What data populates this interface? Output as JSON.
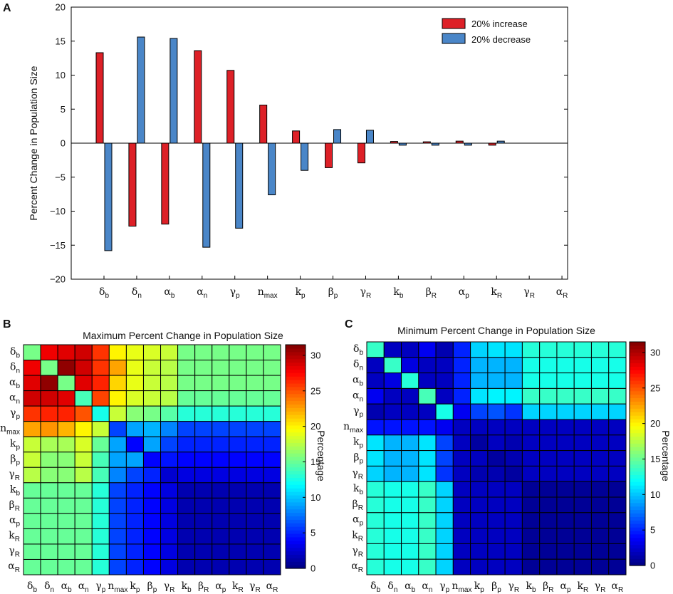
{
  "colors": {
    "increase": "#dd2027",
    "decrease": "#4a86c8"
  },
  "param_symbols": {
    "delta_b": [
      "δ",
      "b"
    ],
    "delta_n": [
      "δ",
      "n"
    ],
    "alpha_b": [
      "α",
      "b"
    ],
    "alpha_n": [
      "α",
      "n"
    ],
    "gamma_p": [
      "γ",
      "p"
    ],
    "n_max": [
      "n",
      "max"
    ],
    "k_p": [
      "k",
      "p"
    ],
    "beta_p": [
      "β",
      "p"
    ],
    "gamma_R": [
      "γ",
      "R"
    ],
    "k_b": [
      "k",
      "b"
    ],
    "beta_R": [
      "β",
      "R"
    ],
    "alpha_p": [
      "α",
      "p"
    ],
    "k_R": [
      "k",
      "R"
    ],
    "alpha_R": [
      "α",
      "R"
    ]
  },
  "chart_data": [
    {
      "panel": "A",
      "type": "bar",
      "ylabel": "Percent Change in Population Size",
      "xlabel": "",
      "ylim": [
        -20,
        20
      ],
      "yticks": [
        -20,
        -15,
        -10,
        -5,
        0,
        5,
        10,
        15,
        20
      ],
      "yticklabels": [
        "−20",
        "−15",
        "−10",
        "−5",
        "0",
        "5",
        "10",
        "15",
        "20"
      ],
      "categories": [
        "delta_b",
        "delta_n",
        "alpha_b",
        "alpha_n",
        "gamma_p",
        "n_max",
        "k_p",
        "beta_p",
        "gamma_R",
        "k_b",
        "beta_R",
        "alpha_p",
        "k_R",
        "gamma_R",
        "alpha_R"
      ],
      "series": [
        {
          "name": "20% increase",
          "color_key": "increase",
          "values": [
            13.3,
            -12.2,
            -11.9,
            13.6,
            10.7,
            5.6,
            1.8,
            -3.6,
            -2.9,
            0.25,
            0.2,
            0.3,
            -0.3,
            0,
            0
          ]
        },
        {
          "name": "20% decrease",
          "color_key": "decrease",
          "values": [
            -15.8,
            15.6,
            15.4,
            -15.3,
            -12.5,
            -7.6,
            -4.0,
            2.0,
            1.9,
            -0.3,
            -0.3,
            -0.3,
            0.3,
            0,
            0
          ]
        }
      ]
    },
    {
      "panel": "B",
      "type": "heatmap",
      "title": "Maximum Percent Change in Population Size",
      "colorbar_label": "Percentage",
      "colorbar_range": [
        0,
        31.5
      ],
      "colorbar_ticks": [
        0,
        5,
        10,
        15,
        20,
        25,
        30
      ],
      "rows": [
        "delta_b",
        "delta_n",
        "alpha_b",
        "alpha_n",
        "gamma_p",
        "n_max",
        "k_p",
        "beta_p",
        "gamma_R",
        "k_b",
        "beta_R",
        "alpha_p",
        "k_R",
        "gamma_R",
        "alpha_R"
      ],
      "cols": [
        "delta_b",
        "delta_n",
        "alpha_b",
        "alpha_n",
        "gamma_p",
        "n_max",
        "k_p",
        "beta_p",
        "gamma_R",
        "k_b",
        "beta_R",
        "alpha_p",
        "k_R",
        "gamma_R",
        "alpha_R"
      ],
      "values": [
        [
          15.5,
          28,
          28.5,
          29,
          26,
          20,
          19,
          18.5,
          18,
          15.5,
          15.5,
          15.5,
          15.5,
          15.5,
          15.5
        ],
        [
          28,
          15.5,
          31,
          29,
          26,
          22.5,
          19,
          18,
          17.5,
          15.5,
          15.5,
          15.5,
          15.5,
          15.5,
          15.5
        ],
        [
          28.5,
          31,
          15.5,
          28.5,
          26.5,
          21,
          19,
          18,
          17.5,
          15.5,
          15.5,
          15.5,
          15.5,
          15.5,
          15.5
        ],
        [
          29,
          29,
          28.5,
          14,
          25.5,
          20,
          18.5,
          18,
          17.5,
          15,
          15,
          15,
          15,
          15,
          15
        ],
        [
          26,
          26.5,
          26.5,
          25,
          12.5,
          18,
          16,
          15.5,
          14.5,
          13,
          13,
          13,
          13,
          13,
          13
        ],
        [
          22.5,
          23,
          22,
          20,
          18,
          6,
          9,
          9.5,
          8,
          6,
          6,
          6,
          6,
          6,
          6
        ],
        [
          18,
          17,
          17,
          18.5,
          15,
          9,
          4,
          9,
          6,
          5,
          5,
          5,
          5,
          5,
          5
        ],
        [
          18,
          16,
          16,
          18,
          14,
          9,
          9,
          4,
          4.5,
          4,
          4,
          4,
          4,
          4,
          4
        ],
        [
          17.5,
          16,
          16,
          17.5,
          14,
          8,
          6,
          5,
          2.5,
          3,
          3,
          3,
          3,
          3,
          3
        ],
        [
          15,
          15,
          15,
          15,
          13,
          6,
          5,
          4,
          3,
          1.5,
          1.5,
          1.5,
          1.5,
          1.5,
          1.5
        ],
        [
          15,
          15,
          15,
          15,
          13,
          6,
          5,
          4,
          3,
          1.5,
          1.5,
          1.5,
          1.5,
          1.5,
          1.5
        ],
        [
          15,
          15,
          15,
          15,
          13,
          6,
          5,
          4,
          3,
          1.5,
          1.5,
          1.5,
          1.5,
          1.5,
          1.5
        ],
        [
          15,
          15,
          15,
          15,
          13,
          6,
          5,
          4,
          3,
          1.5,
          1.5,
          1.5,
          1.5,
          1.5,
          1.5
        ],
        [
          15,
          15,
          15,
          15,
          13,
          6,
          5,
          4,
          3,
          1.5,
          1.5,
          1.5,
          1.5,
          1.5,
          1.5
        ],
        [
          15,
          15,
          15,
          15,
          13,
          6,
          5,
          4,
          3,
          1.5,
          1.5,
          1.5,
          1.5,
          1.5,
          1.5
        ]
      ]
    },
    {
      "panel": "C",
      "type": "heatmap",
      "title": "Minimum Percent Change in Population Size",
      "colorbar_label": "Percentage",
      "colorbar_range": [
        0,
        31.5
      ],
      "colorbar_ticks": [
        0,
        5,
        10,
        15,
        20,
        25,
        30
      ],
      "rows": [
        "delta_b",
        "delta_n",
        "alpha_b",
        "alpha_n",
        "gamma_p",
        "n_max",
        "k_p",
        "beta_p",
        "gamma_R",
        "k_b",
        "beta_R",
        "alpha_p",
        "k_R",
        "gamma_R",
        "alpha_R"
      ],
      "cols": [
        "delta_b",
        "delta_n",
        "alpha_b",
        "alpha_n",
        "gamma_p",
        "n_max",
        "k_p",
        "beta_p",
        "gamma_R",
        "k_b",
        "beta_R",
        "alpha_p",
        "k_R",
        "gamma_R",
        "alpha_R"
      ],
      "values": [
        [
          13.5,
          2,
          2,
          3.5,
          1.5,
          5,
          10.5,
          11,
          11,
          13,
          13,
          13,
          13,
          13,
          13
        ],
        [
          2,
          13.5,
          3,
          2,
          2,
          5,
          9.5,
          9.5,
          9.5,
          12.5,
          12.5,
          12.5,
          12.5,
          12.5,
          12.5
        ],
        [
          2,
          3,
          13,
          2,
          2,
          5,
          9.5,
          9.5,
          9.5,
          12.5,
          12.5,
          12.5,
          12.5,
          12.5,
          12.5
        ],
        [
          3.5,
          2,
          2,
          14,
          2,
          5,
          11,
          11.5,
          11.5,
          13.5,
          13.5,
          13.5,
          13.5,
          13.5,
          13.5
        ],
        [
          1.5,
          2,
          2,
          2,
          12.5,
          3.5,
          6,
          6.5,
          5.5,
          10.5,
          10.5,
          10.5,
          10.5,
          10.5,
          10.5
        ],
        [
          4.5,
          4.5,
          4.5,
          4.5,
          3.5,
          2,
          2,
          2,
          2,
          2,
          2,
          2,
          2,
          2,
          2
        ],
        [
          11,
          9.5,
          9.5,
          11,
          6,
          2,
          1,
          2,
          1.5,
          2,
          2,
          2,
          2,
          2,
          2
        ],
        [
          11,
          9.5,
          9.5,
          11,
          6,
          2,
          2,
          1,
          1.5,
          2,
          2,
          2,
          2,
          2,
          2
        ],
        [
          10.5,
          9.5,
          9.5,
          11,
          5.5,
          2,
          1.5,
          1.5,
          1,
          2,
          2,
          2,
          2,
          2,
          2
        ],
        [
          13,
          12.5,
          12.5,
          13.5,
          10.5,
          2,
          2,
          2,
          2,
          0.7,
          0.7,
          0.7,
          0.7,
          0.7,
          0.7
        ],
        [
          13,
          12.5,
          12.5,
          13.5,
          10.5,
          2,
          2,
          2,
          2,
          0.7,
          0.7,
          0.7,
          0.7,
          0.7,
          0.7
        ],
        [
          13,
          12.5,
          12.5,
          13.5,
          10.5,
          2,
          2,
          2,
          2,
          0.7,
          0.7,
          0.7,
          0.7,
          0.7,
          0.7
        ],
        [
          13,
          12.5,
          12.5,
          13.5,
          10.5,
          2,
          2,
          2,
          2,
          0.7,
          0.7,
          0.7,
          0.7,
          0.7,
          0.7
        ],
        [
          13,
          12.5,
          12.5,
          13.5,
          10.5,
          2,
          2,
          2,
          2,
          0.7,
          0.7,
          0.7,
          0.7,
          0.7,
          0.7
        ],
        [
          13,
          12.5,
          12.5,
          13.5,
          10.5,
          2,
          2,
          2,
          2,
          0.7,
          0.7,
          0.7,
          0.7,
          0.7,
          0.7
        ]
      ]
    }
  ]
}
